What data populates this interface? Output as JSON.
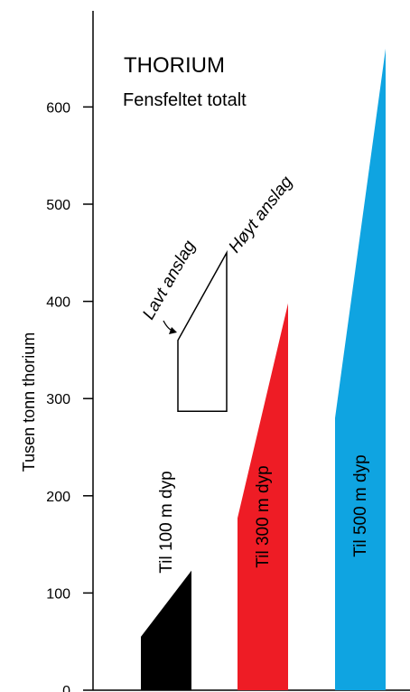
{
  "chart_data": {
    "type": "area",
    "title": "THORIUM",
    "subtitle": "Fensfeltet totalt",
    "xlabel": "",
    "ylabel": "Tusen tonn thorium",
    "ylim": [
      0,
      660
    ],
    "yticks": [
      0,
      100,
      200,
      300,
      400,
      500,
      600
    ],
    "grid": false,
    "series": [
      {
        "name": "Til 100 m dyp",
        "low": 55,
        "high": 123,
        "color": "#000000"
      },
      {
        "name": "Til 300 m dyp",
        "low": 177,
        "high": 398,
        "color": "#ee1c25"
      },
      {
        "name": "Til 500 m dyp",
        "low": 280,
        "high": 660,
        "color": "#0fa4e1"
      }
    ],
    "legend": {
      "base": 287,
      "low": 360,
      "high": 450,
      "low_label": "Lavt anslag",
      "high_label": "Høyt anslag"
    }
  }
}
